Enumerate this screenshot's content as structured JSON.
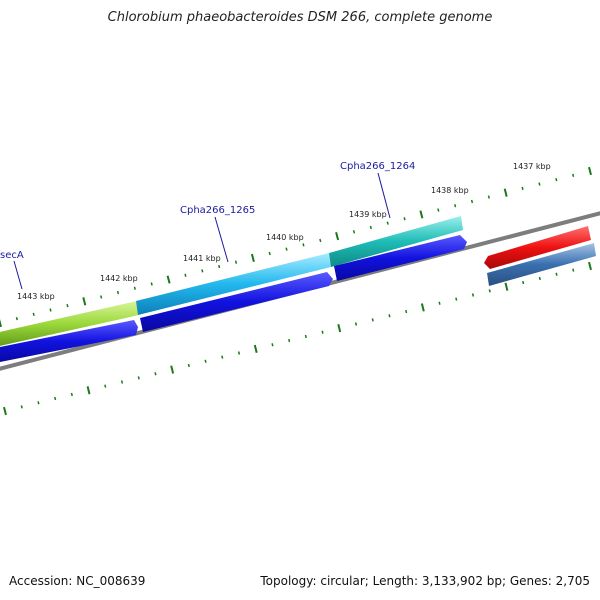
{
  "title": "Chlorobium phaeobacteroides DSM 266, complete genome",
  "footer": {
    "accession": "Accession: NC_008639",
    "stats": "Topology: circular; Length: 3,133,902 bp; Genes: 2,705"
  },
  "ruler": {
    "kbp_labels": [
      "1443 kbp",
      "1442 kbp",
      "1441 kbp",
      "1440 kbp",
      "1439 kbp",
      "1438 kbp",
      "1437 kbp"
    ]
  },
  "genes": [
    {
      "label": "secA",
      "strand": "+",
      "color": "#8ccc2c"
    },
    {
      "label": "Cpha266_1265",
      "strand": "+",
      "color": "#1ab4e8"
    },
    {
      "label": "Cpha266_1264",
      "strand": "+",
      "color": "#18b8b0"
    },
    {
      "label": "",
      "strand": "-",
      "color": "#ee1111"
    },
    {
      "label": "",
      "strand": "-",
      "color": "#3a70b0"
    }
  ],
  "colors": {
    "backbone": "#7d7d7d",
    "cds": "#1010dd",
    "ticks": "#1a7a1a",
    "gene_label": "#1a1aa0"
  }
}
